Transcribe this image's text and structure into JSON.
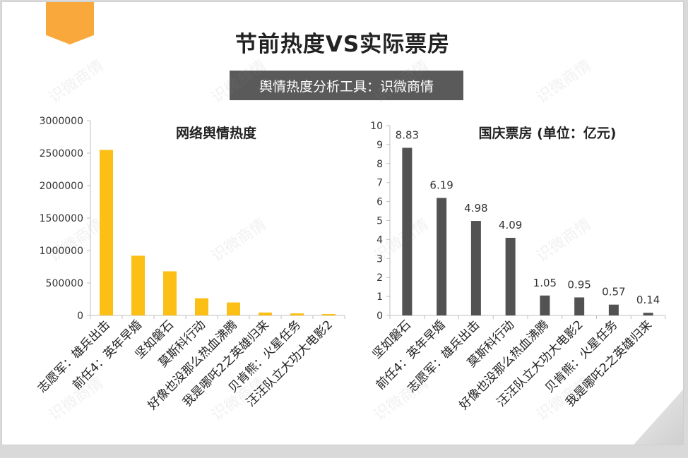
{
  "page": {
    "title": "节前热度VS实际票房",
    "subtitle": "舆情热度分析工具：识微商情",
    "watermark": "识微商情"
  },
  "colors": {
    "ribbon": "#f9a93b",
    "left_bar": "#fbbf16",
    "right_bar": "#525252",
    "subtitle_bg": "#5a5a5a"
  },
  "chart_data": [
    {
      "type": "bar",
      "title": "网络舆情热度",
      "categories": [
        "志愿军：雄兵出击",
        "前任4：英年早婚",
        "坚如磐石",
        "莫斯科行动",
        "好像也没那么热血沸腾",
        "我是哪吒2之英雄归来",
        "贝肯熊：火星任务",
        "汪汪队立大功大电影2"
      ],
      "values": [
        2550000,
        920000,
        680000,
        265000,
        200000,
        45000,
        32000,
        22000
      ],
      "ylim": [
        0,
        3000000
      ],
      "yticks": [
        0,
        500000,
        1000000,
        1500000,
        2000000,
        2500000,
        3000000
      ],
      "data_labels": false
    },
    {
      "type": "bar",
      "title": "国庆票房 (单位：亿元)",
      "categories": [
        "坚如磐石",
        "前任4：英年早婚",
        "志愿军：雄兵出击",
        "莫斯科行动",
        "好像也没那么热血沸腾",
        "汪汪队立大功大电影2",
        "贝肯熊：火星任务",
        "我是哪吒2之英雄归来"
      ],
      "values": [
        8.83,
        6.19,
        4.98,
        4.09,
        1.05,
        0.95,
        0.57,
        0.14
      ],
      "labels": [
        "8.83",
        "6.19",
        "4.98",
        "4.09",
        "1.05",
        "0.95",
        "0.57",
        "0.14"
      ],
      "ylim": [
        0,
        10
      ],
      "yticks": [
        0,
        1,
        2,
        3,
        4,
        5,
        6,
        7,
        8,
        9,
        10
      ],
      "data_labels": true
    }
  ]
}
